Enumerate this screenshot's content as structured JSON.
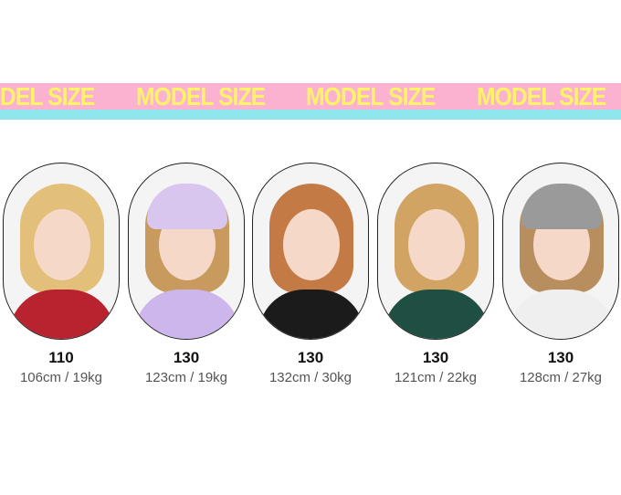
{
  "banner": {
    "text": "MODEL SIZE",
    "colors": {
      "band": "#fbb1d0",
      "text": "#fff36a",
      "stripe": "#8fe6ec"
    }
  },
  "models": [
    {
      "size": "110",
      "measurements": "106cm / 19kg",
      "hair": "#e2c07a",
      "hat": null,
      "shirt": "#b8232f"
    },
    {
      "size": "130",
      "measurements": "123cm / 19kg",
      "hair": "#c99a5e",
      "hat": "#d9c6ee",
      "shirt": "#cdb6ec"
    },
    {
      "size": "130",
      "measurements": "132cm / 30kg",
      "hair": "#c47a45",
      "hat": null,
      "shirt": "#1b1b1b"
    },
    {
      "size": "130",
      "measurements": "121cm / 22kg",
      "hair": "#d1a463",
      "hat": null,
      "shirt": "#1f4f43"
    },
    {
      "size": "130",
      "measurements": "128cm / 27kg",
      "hair": "#b98e5e",
      "hat": "#9a9a9a",
      "shirt": "#efefef"
    }
  ]
}
